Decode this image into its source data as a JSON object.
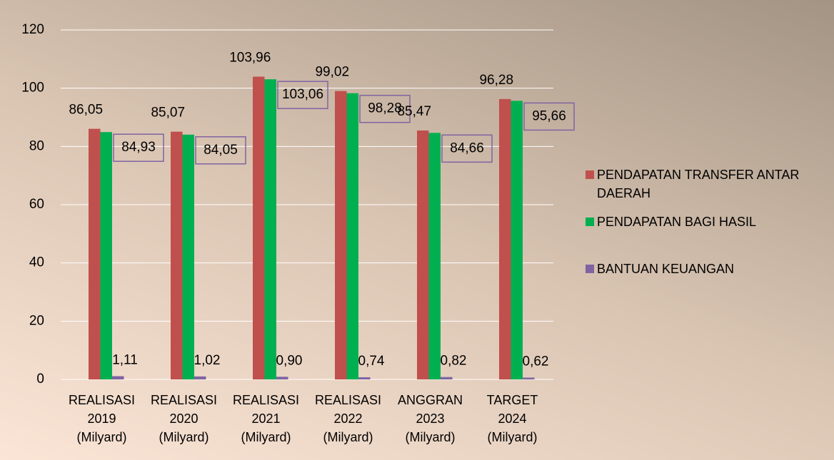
{
  "chart_data": {
    "type": "bar",
    "categories": [
      "REALISASI 2019 (Milyard)",
      "REALISASI 2020 (Milyard)",
      "REALISASI 2021 (Milyard)",
      "REALISASI 2022 (Milyard)",
      "ANGGRAN 2023 (Milyard)",
      "TARGET 2024 (Milyard)"
    ],
    "series": [
      {
        "name": "PENDAPATAN TRANSFER ANTAR DAERAH",
        "color": "#c0504d",
        "values": [
          86.05,
          85.07,
          103.96,
          99.02,
          85.47,
          96.28
        ],
        "value_labels": [
          "86,05",
          "85,07",
          "103,96",
          "99,02",
          "85,47",
          "96,28"
        ]
      },
      {
        "name": "PENDAPATAN BAGI HASIL",
        "color": "#00b050",
        "values": [
          84.93,
          84.05,
          103.06,
          98.28,
          84.66,
          95.66
        ],
        "value_labels": [
          "84,93",
          "84,05",
          "103,06",
          "98,28",
          "84,66",
          "95,66"
        ]
      },
      {
        "name": "BANTUAN KEUANGAN",
        "color": "#8064a2",
        "values": [
          1.11,
          1.02,
          0.9,
          0.74,
          0.82,
          0.62
        ],
        "value_labels": [
          "1,11",
          "1,02",
          "0,90",
          "0,74",
          "0,82",
          "0,62"
        ]
      }
    ],
    "ylim": [
      0,
      120
    ],
    "yticks": [
      0,
      20,
      40,
      60,
      80,
      100,
      120
    ],
    "grid": true,
    "legend": "right"
  }
}
